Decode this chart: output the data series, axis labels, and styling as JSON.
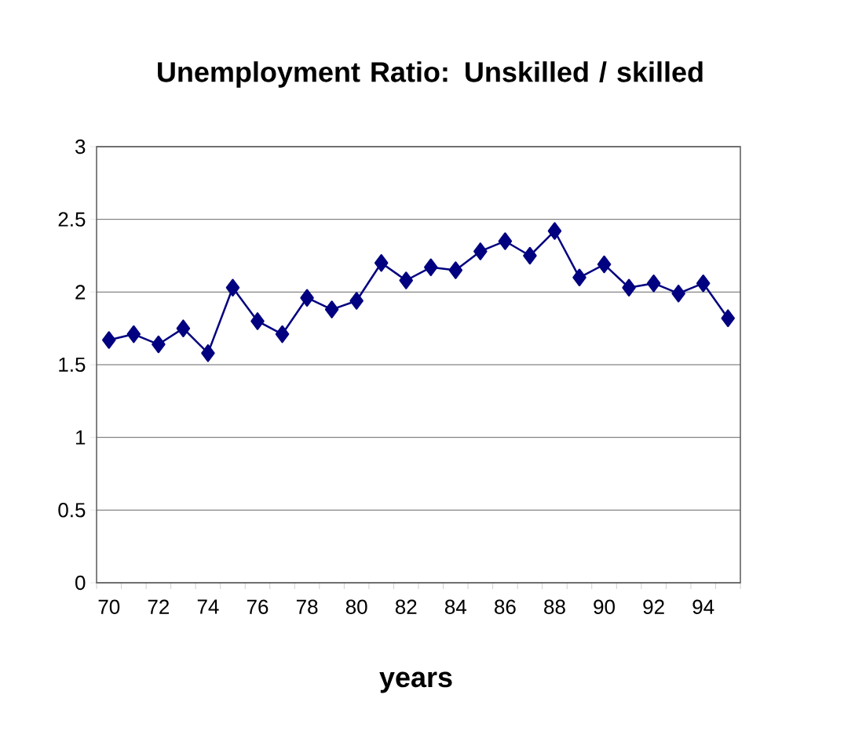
{
  "chart_data": {
    "type": "line",
    "title": "Unemployment Ratio: Unskilled / skilled",
    "xlabel": "years",
    "categories": [
      "70",
      null,
      "72",
      null,
      "74",
      null,
      "76",
      null,
      "78",
      null,
      "80",
      null,
      "82",
      null,
      "84",
      null,
      "86",
      null,
      "88",
      null,
      "90",
      null,
      "92",
      null,
      "94",
      null
    ],
    "series": [
      {
        "color": "#000080",
        "values": [
          1.67,
          1.71,
          1.64,
          1.75,
          1.58,
          2.03,
          1.8,
          1.71,
          1.96,
          1.88,
          1.94,
          2.2,
          2.08,
          2.17,
          2.15,
          2.28,
          2.35,
          2.25,
          2.42,
          2.1,
          2.19,
          2.03,
          2.06,
          1.99,
          2.06,
          1.82
        ]
      }
    ],
    "ylim": [
      0,
      3
    ],
    "yticks": [
      0,
      0.5,
      1,
      1.5,
      2,
      2.5,
      3
    ],
    "grid": "y",
    "marker": "diamond",
    "line_style": "solid"
  }
}
